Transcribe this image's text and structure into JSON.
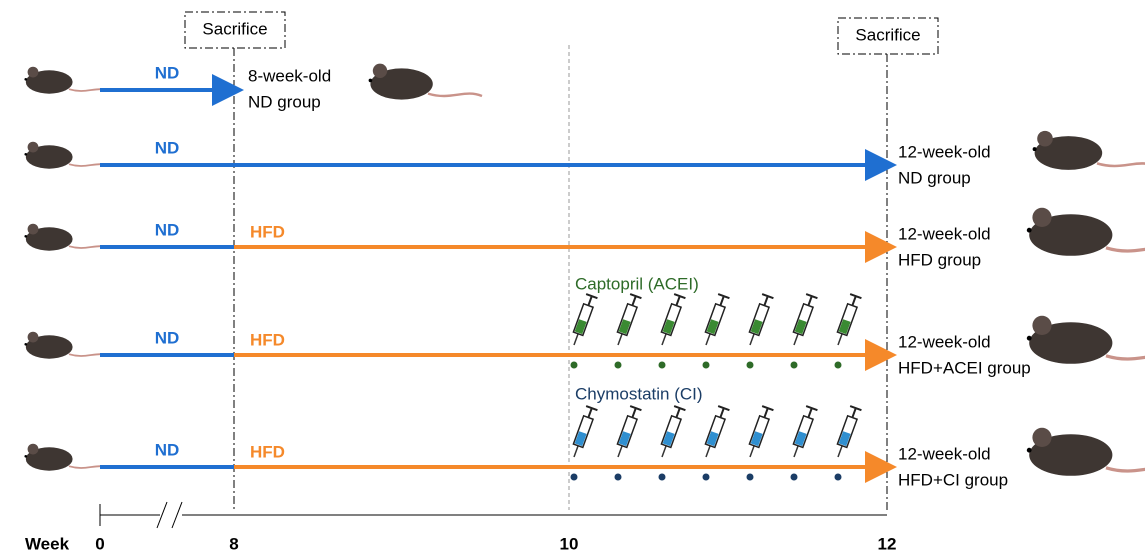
{
  "sacrifice_labels": [
    "Sacrifice",
    "Sacrifice"
  ],
  "rows": [
    {
      "segments": [
        "ND"
      ],
      "outcome": [
        "8-week-old",
        "ND group"
      ]
    },
    {
      "segments": [
        "ND"
      ],
      "outcome": [
        "12-week-old",
        "ND group"
      ]
    },
    {
      "segments": [
        "ND",
        "HFD"
      ],
      "outcome": [
        "12-week-old",
        "HFD group"
      ]
    },
    {
      "segments": [
        "ND",
        "HFD"
      ],
      "outcome": [
        "12-week-old",
        "HFD+ACEI group"
      ]
    },
    {
      "segments": [
        "ND",
        "HFD"
      ],
      "outcome": [
        "12-week-old",
        "HFD+CI group"
      ]
    }
  ],
  "treatments": [
    {
      "label": "Captopril (ACEI)"
    },
    {
      "label": "Chymostatin (CI)"
    }
  ],
  "axis": {
    "title": "Week",
    "ticks": [
      "0",
      "8",
      "10",
      "12"
    ]
  }
}
